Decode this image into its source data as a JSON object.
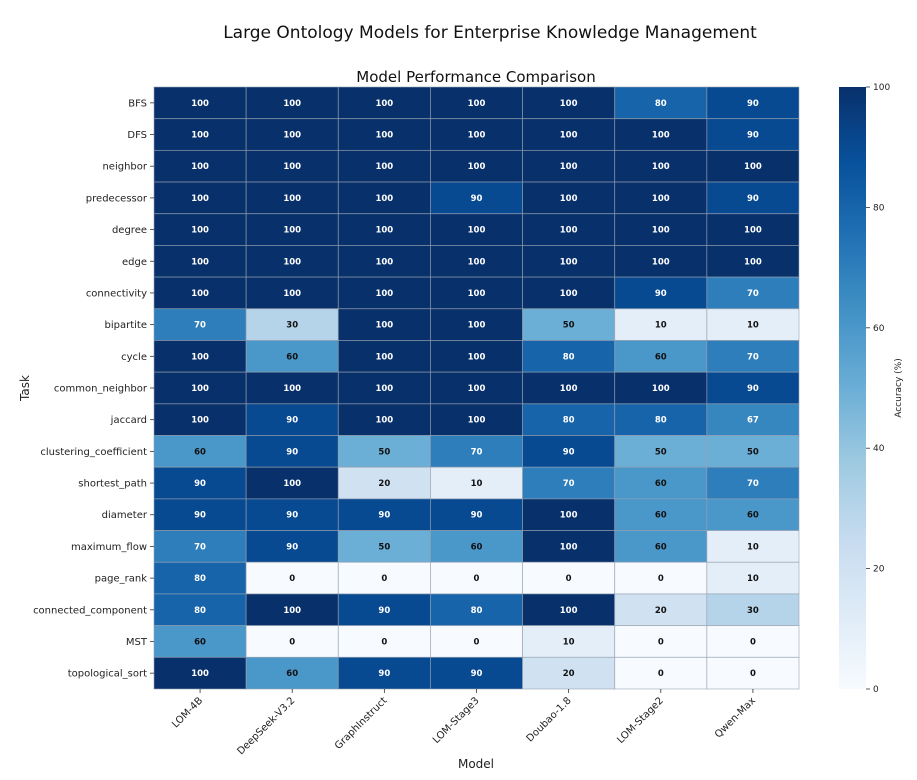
{
  "chart_data": {
    "type": "heatmap",
    "suptitle": "Large Ontology Models for Enterprise Knowledge Management",
    "title": "Model Performance Comparison",
    "xlabel": "Model",
    "ylabel": "Task",
    "colormap": "Blues",
    "colorbar": {
      "label": "Accuracy (%)",
      "range": [
        0,
        100
      ],
      "ticks": [
        "0",
        "20",
        "40",
        "60",
        "80",
        "100"
      ]
    },
    "x_categories": [
      "LOM-4B",
      "DeepSeek-V3.2",
      "GraphInstruct",
      "LOM-Stage3",
      "Doubao-1.8",
      "LOM-Stage2",
      "Qwen-Max"
    ],
    "y_categories": [
      "BFS",
      "DFS",
      "neighbor",
      "predecessor",
      "degree",
      "edge",
      "connectivity",
      "bipartite",
      "cycle",
      "common_neighbor",
      "jaccard",
      "clustering_coefficient",
      "shortest_path",
      "diameter",
      "maximum_flow",
      "page_rank",
      "connected_component",
      "MST",
      "topological_sort"
    ],
    "values": [
      [
        100,
        100,
        100,
        100,
        100,
        80,
        90
      ],
      [
        100,
        100,
        100,
        100,
        100,
        100,
        90
      ],
      [
        100,
        100,
        100,
        100,
        100,
        100,
        100
      ],
      [
        100,
        100,
        100,
        90,
        100,
        100,
        90
      ],
      [
        100,
        100,
        100,
        100,
        100,
        100,
        100
      ],
      [
        100,
        100,
        100,
        100,
        100,
        100,
        100
      ],
      [
        100,
        100,
        100,
        100,
        100,
        90,
        70
      ],
      [
        70,
        30,
        100,
        100,
        50,
        10,
        10
      ],
      [
        100,
        60,
        100,
        100,
        80,
        60,
        70
      ],
      [
        100,
        100,
        100,
        100,
        100,
        100,
        90
      ],
      [
        100,
        90,
        100,
        100,
        80,
        80,
        67
      ],
      [
        60,
        90,
        50,
        70,
        90,
        50,
        50
      ],
      [
        90,
        100,
        20,
        10,
        70,
        60,
        70
      ],
      [
        90,
        90,
        90,
        90,
        100,
        60,
        60
      ],
      [
        70,
        90,
        50,
        60,
        100,
        60,
        10
      ],
      [
        80,
        0,
        0,
        0,
        0,
        0,
        10
      ],
      [
        80,
        100,
        90,
        80,
        100,
        20,
        30
      ],
      [
        60,
        0,
        0,
        0,
        10,
        0,
        0
      ],
      [
        100,
        60,
        90,
        90,
        20,
        0,
        0
      ]
    ]
  }
}
